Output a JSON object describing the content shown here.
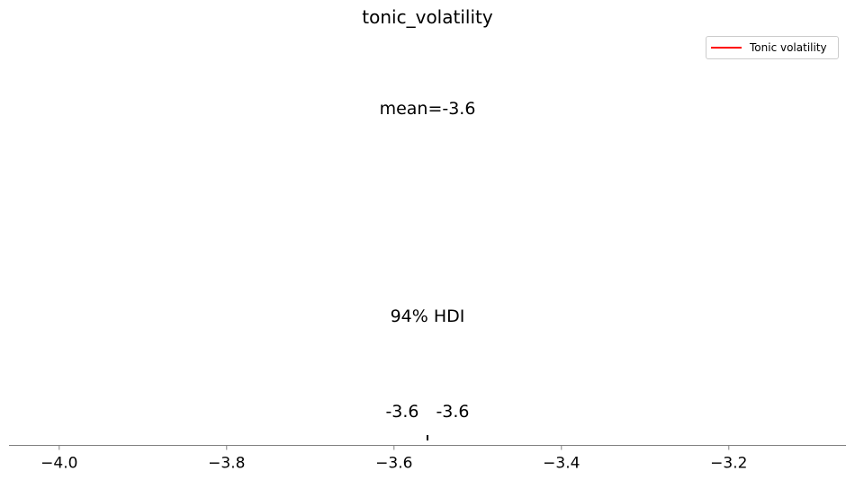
{
  "chart_data": {
    "type": "posterior",
    "title": "tonic_volatility",
    "mean_label": "mean=-3.6",
    "hdi_label": "94% HDI",
    "hdi_low_label": "-3.6",
    "hdi_high_label": "-3.6",
    "mean": -3.56,
    "hdi": [
      -3.56,
      -3.56
    ],
    "xlim": [
      -4.06,
      -3.06
    ],
    "xticks": [
      -4.0,
      -3.8,
      -3.6,
      -3.4,
      -3.2
    ],
    "xtick_labels": [
      "−4.0",
      "−3.8",
      "−3.6",
      "−3.4",
      "−3.2"
    ],
    "legend": {
      "placement": "top-right",
      "entries": [
        {
          "label": "Tonic volatility",
          "color": "#ff0000"
        }
      ]
    },
    "colors": {
      "series": "#ff0000",
      "axis": "#808080",
      "text": "#000000"
    }
  }
}
